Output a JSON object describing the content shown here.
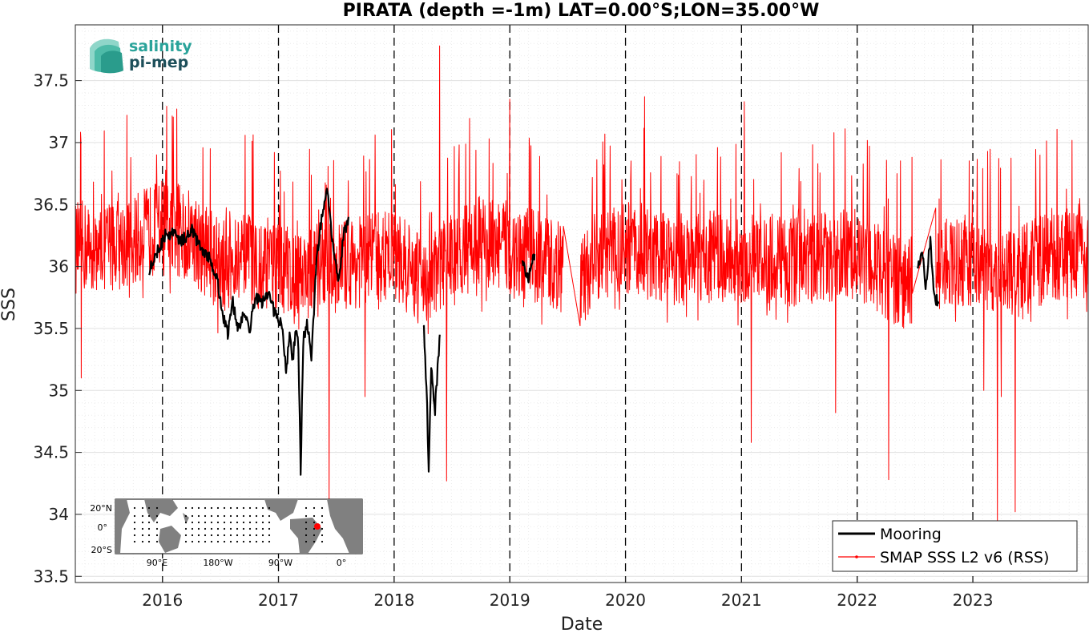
{
  "chart_data": {
    "type": "line",
    "title": "PIRATA (depth =-1m) LAT=0.00°S;LON=35.00°W",
    "xlabel": "Date",
    "ylabel": "SSS",
    "xlim": [
      "2015-04-01",
      "2023-12-31"
    ],
    "ylim": [
      33.45,
      37.95
    ],
    "x_ticks": [
      "2016",
      "2017",
      "2018",
      "2019",
      "2020",
      "2021",
      "2022",
      "2023"
    ],
    "y_ticks": [
      "33.5",
      "34",
      "34.5",
      "35",
      "35.5",
      "36",
      "36.5",
      "37",
      "37.5"
    ],
    "year_boundary_lines": "dashed",
    "grid": true,
    "legend_position": "bottom-right",
    "series": [
      {
        "name": "Mooring",
        "color": "#000000",
        "points": [
          [
            "2015-11-20",
            35.98
          ],
          [
            "2015-12-15",
            36.12
          ],
          [
            "2016-01-10",
            36.25
          ],
          [
            "2016-02-05",
            36.27
          ],
          [
            "2016-03-01",
            36.2
          ],
          [
            "2016-04-01",
            36.3
          ],
          [
            "2016-05-01",
            36.15
          ],
          [
            "2016-06-01",
            36.05
          ],
          [
            "2016-06-20",
            35.92
          ],
          [
            "2016-07-10",
            35.6
          ],
          [
            "2016-07-25",
            35.45
          ],
          [
            "2016-08-10",
            35.72
          ],
          [
            "2016-08-25",
            35.5
          ],
          [
            "2016-09-15",
            35.62
          ],
          [
            "2016-10-01",
            35.48
          ],
          [
            "2016-10-20",
            35.75
          ],
          [
            "2016-11-10",
            35.7
          ],
          [
            "2016-12-01",
            35.78
          ],
          [
            "2016-12-20",
            35.62
          ],
          [
            "2017-01-10",
            35.55
          ],
          [
            "2017-01-25",
            35.15
          ],
          [
            "2017-02-05",
            35.45
          ],
          [
            "2017-02-15",
            35.25
          ],
          [
            "2017-02-25",
            35.5
          ],
          [
            "2017-03-05",
            35.35
          ],
          [
            "2017-03-12",
            34.33
          ],
          [
            "2017-03-20",
            35.4
          ],
          [
            "2017-04-01",
            35.55
          ],
          [
            "2017-04-15",
            35.25
          ],
          [
            "2017-05-01",
            36.05
          ],
          [
            "2017-05-20",
            36.45
          ],
          [
            "2017-06-05",
            36.65
          ],
          [
            "2017-06-20",
            36.2
          ],
          [
            "2017-07-10",
            35.85
          ],
          [
            "2017-07-25",
            36.25
          ],
          [
            "2017-08-10",
            36.4
          ],
          [
            "2018-04-05",
            35.5
          ],
          [
            "2018-04-15",
            34.85
          ],
          [
            "2018-04-20",
            34.3
          ],
          [
            "2018-04-28",
            35.2
          ],
          [
            "2018-05-10",
            34.85
          ],
          [
            "2018-05-25",
            35.45
          ],
          [
            "2019-02-10",
            36.05
          ],
          [
            "2019-03-01",
            35.9
          ],
          [
            "2019-03-20",
            36.1
          ],
          [
            "2022-07-10",
            35.95
          ],
          [
            "2022-07-25",
            36.15
          ],
          [
            "2022-08-05",
            35.85
          ],
          [
            "2022-08-20",
            36.2
          ],
          [
            "2022-09-01",
            35.75
          ],
          [
            "2022-09-15",
            35.7
          ]
        ]
      },
      {
        "name": "SMAP SSS L2 v6 (RSS)",
        "color": "#ff0000",
        "baseline_points": [
          [
            "2015-04-01",
            36.15
          ],
          [
            "2015-10-01",
            36.2
          ],
          [
            "2016-01-01",
            36.35
          ],
          [
            "2016-04-01",
            36.25
          ],
          [
            "2016-07-01",
            36.0
          ],
          [
            "2016-10-01",
            36.05
          ],
          [
            "2017-01-01",
            36.0
          ],
          [
            "2017-04-01",
            35.95
          ],
          [
            "2017-07-01",
            36.0
          ],
          [
            "2017-10-01",
            36.05
          ],
          [
            "2018-01-01",
            36.1
          ],
          [
            "2018-04-01",
            35.85
          ],
          [
            "2018-07-01",
            36.1
          ],
          [
            "2018-10-01",
            36.2
          ],
          [
            "2019-01-01",
            36.15
          ],
          [
            "2019-05-01",
            36.05
          ],
          [
            "2019-06-20",
            36.0
          ],
          [
            "2019-08-10",
            35.8
          ],
          [
            "2019-10-01",
            36.1
          ],
          [
            "2020-01-01",
            36.15
          ],
          [
            "2020-06-01",
            36.05
          ],
          [
            "2020-10-01",
            36.1
          ],
          [
            "2021-01-01",
            36.05
          ],
          [
            "2021-07-01",
            36.05
          ],
          [
            "2022-01-01",
            36.1
          ],
          [
            "2022-06-01",
            35.85
          ],
          [
            "2022-09-01",
            36.0
          ],
          [
            "2023-01-01",
            36.05
          ],
          [
            "2023-05-01",
            35.9
          ],
          [
            "2023-09-01",
            36.1
          ],
          [
            "2023-12-31",
            36.1
          ]
        ],
        "gaps": [
          [
            "2019-06-20",
            "2019-08-10"
          ],
          [
            "2022-06-25",
            "2022-09-05"
          ]
        ],
        "spikes": [
          [
            "2015-04-20",
            35.1
          ],
          [
            "2017-10-01",
            34.95
          ],
          [
            "2017-06-10",
            34.1
          ],
          [
            "2018-05-25",
            37.78
          ],
          [
            "2018-06-15",
            34.27
          ],
          [
            "2019-01-01",
            37.35
          ],
          [
            "2020-03-01",
            37.37
          ],
          [
            "2021-01-10",
            37.33
          ],
          [
            "2021-02-01",
            34.58
          ],
          [
            "2021-10-25",
            34.82
          ],
          [
            "2022-04-10",
            34.28
          ],
          [
            "2023-02-05",
            35.0
          ],
          [
            "2023-03-20",
            33.9
          ],
          [
            "2023-04-01",
            34.95
          ],
          [
            "2023-05-15",
            34.02
          ]
        ]
      }
    ],
    "inset_map": {
      "lat_labels": [
        "20°N",
        "0°",
        "20°S"
      ],
      "lon_labels": [
        "90°E",
        "180°W",
        "90°W",
        "0°"
      ],
      "marker_color": "#ff0000"
    }
  },
  "logo": {
    "line1": "salinity",
    "line2": "pi-mep"
  },
  "colors": {
    "mooring": "#000000",
    "smap": "#ff0000",
    "land": "#808080",
    "grid": "#d9d9d9",
    "logo_teal": "#2aa39a",
    "logo_dark": "#1d4f5a"
  }
}
